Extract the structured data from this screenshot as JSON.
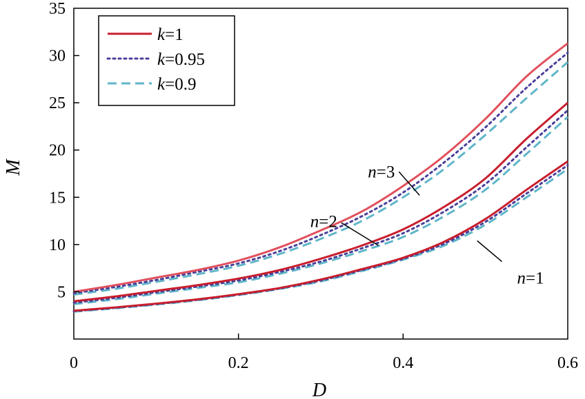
{
  "chart_data": {
    "type": "line",
    "xlabel": "D",
    "ylabel": "M",
    "xlim": [
      0,
      0.6
    ],
    "ylim": [
      0,
      35
    ],
    "xticks": [
      0,
      0.2,
      0.4,
      0.6
    ],
    "xtick_labels": [
      "0",
      "0.2",
      "0.4",
      "0.6"
    ],
    "yticks": [
      5,
      10,
      15,
      20,
      25,
      30,
      35
    ],
    "ytick_labels": [
      "5",
      "10",
      "15",
      "20",
      "25",
      "30",
      "35"
    ],
    "grid": false,
    "legend_position": "top-left",
    "x": [
      0,
      0.05,
      0.1,
      0.15,
      0.2,
      0.25,
      0.3,
      0.35,
      0.4,
      0.45,
      0.5,
      0.55,
      0.6
    ],
    "series": [
      {
        "name": "k=1",
        "group": "n=3",
        "style": "solid",
        "color": "#e0505c",
        "values": [
          5.0,
          5.7,
          6.5,
          7.3,
          8.3,
          9.7,
          11.5,
          13.5,
          16.2,
          19.4,
          23.3,
          27.8,
          31.3
        ]
      },
      {
        "group": "n=3",
        "style": "dotted",
        "color": "#4a3f99",
        "values": [
          4.85,
          5.5,
          6.25,
          7.1,
          8.0,
          9.3,
          11.0,
          13.0,
          15.5,
          18.7,
          22.4,
          26.6,
          30.3
        ]
      },
      {
        "group": "n=3",
        "style": "dashed",
        "color": "#5fb5c8",
        "values": [
          4.7,
          5.3,
          6.05,
          6.85,
          7.75,
          9.0,
          10.6,
          12.5,
          15.0,
          18.0,
          21.6,
          25.5,
          29.3
        ]
      },
      {
        "name": "k=1",
        "group": "n=2",
        "style": "solid",
        "color": "#c81e2d",
        "values": [
          4.0,
          4.5,
          5.1,
          5.7,
          6.4,
          7.3,
          8.5,
          9.9,
          11.6,
          14.0,
          17.0,
          21.2,
          25.0
        ]
      },
      {
        "group": "n=2",
        "style": "dotted",
        "color": "#4a3f99",
        "values": [
          3.85,
          4.35,
          4.95,
          5.55,
          6.2,
          7.1,
          8.2,
          9.6,
          11.2,
          13.5,
          16.4,
          20.3,
          24.2
        ]
      },
      {
        "group": "n=2",
        "style": "dashed",
        "color": "#5fb5c8",
        "values": [
          3.7,
          4.2,
          4.8,
          5.4,
          6.0,
          6.9,
          8.0,
          9.3,
          10.8,
          13.0,
          15.8,
          19.6,
          23.5
        ]
      },
      {
        "name": "k=1",
        "group": "n=1",
        "style": "solid",
        "color": "#c81e2d",
        "values": [
          3.0,
          3.35,
          3.75,
          4.2,
          4.75,
          5.4,
          6.3,
          7.4,
          8.6,
          10.3,
          12.7,
          15.8,
          18.8
        ]
      },
      {
        "group": "n=1",
        "style": "dotted",
        "color": "#4a3f99",
        "values": [
          2.95,
          3.3,
          3.7,
          4.15,
          4.7,
          5.35,
          6.2,
          7.3,
          8.5,
          10.1,
          12.4,
          15.4,
          18.4
        ]
      },
      {
        "group": "n=1",
        "style": "dashed",
        "color": "#5fb5c8",
        "values": [
          2.9,
          3.25,
          3.65,
          4.1,
          4.65,
          5.3,
          6.1,
          7.2,
          8.4,
          9.9,
          12.1,
          15.0,
          18.0
        ]
      }
    ],
    "legend": [
      {
        "label_italic": "k",
        "label_rest": "=1",
        "style": "solid",
        "color": "#c81e2d"
      },
      {
        "label_italic": "k",
        "label_rest": "=0.95",
        "style": "dotted",
        "color": "#4a3f99"
      },
      {
        "label_italic": "k",
        "label_rest": "=0.9",
        "style": "dashed",
        "color": "#5fb5c8"
      }
    ],
    "annotations": [
      {
        "italic": "n",
        "rest": "=3",
        "point": [
          0.42,
          15.2
        ],
        "anchor": [
          0.395,
          17.7
        ]
      },
      {
        "italic": "n",
        "rest": "=2",
        "point": [
          0.37,
          9.9
        ],
        "anchor": [
          0.325,
          12.3
        ]
      },
      {
        "italic": "n",
        "rest": "=1",
        "point": [
          0.49,
          10.4
        ],
        "anchor": [
          0.52,
          8.2
        ]
      }
    ]
  }
}
